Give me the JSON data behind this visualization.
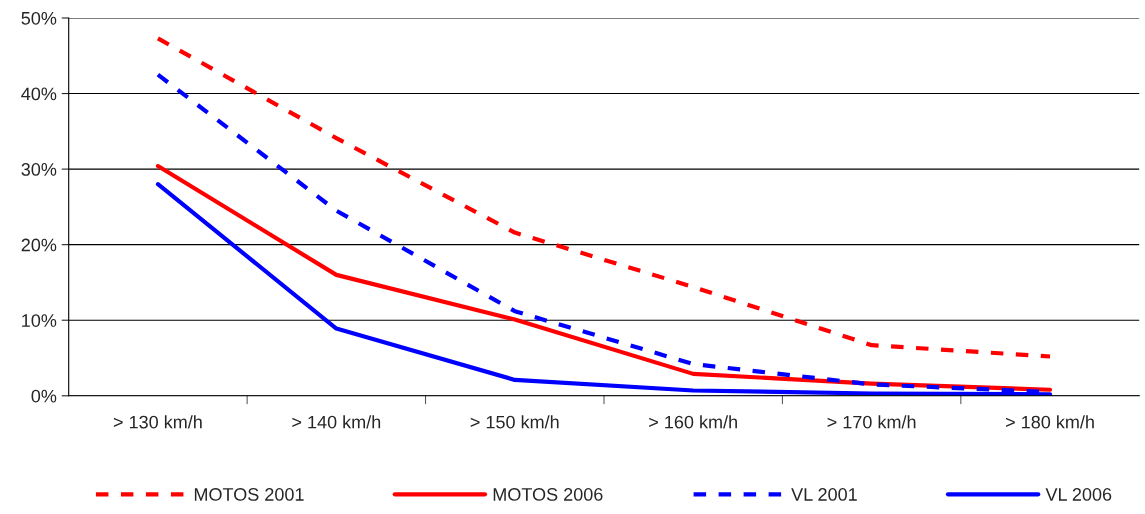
{
  "chart_data": {
    "type": "line",
    "categories": [
      "> 130 km/h",
      "> 140 km/h",
      "> 150 km/h",
      "> 160 km/h",
      "> 170 km/h",
      "> 180 km/h"
    ],
    "series": [
      {
        "name": "MOTOS 2001",
        "color": "#ff0000",
        "line_style": "dashed",
        "values": [
          47.3,
          34.1,
          21.6,
          14.4,
          6.7,
          5.2
        ]
      },
      {
        "name": "MOTOS 2006",
        "color": "#ff0000",
        "line_style": "solid",
        "values": [
          30.4,
          16.0,
          10.1,
          2.9,
          1.6,
          0.8
        ]
      },
      {
        "name": "VL 2001",
        "color": "#0000ff",
        "line_style": "dashed",
        "values": [
          42.5,
          24.5,
          11.2,
          4.2,
          1.5,
          0.5
        ]
      },
      {
        "name": "VL 2006",
        "color": "#0000ff",
        "line_style": "solid",
        "values": [
          28.0,
          8.9,
          2.1,
          0.7,
          0.3,
          0.2
        ]
      }
    ],
    "ylim": [
      0,
      50
    ],
    "yticks": [
      {
        "value": 0,
        "label": "0%"
      },
      {
        "value": 10,
        "label": "10%"
      },
      {
        "value": 20,
        "label": "20%"
      },
      {
        "value": 30,
        "label": "30%"
      },
      {
        "value": 40,
        "label": "40%"
      },
      {
        "value": 50,
        "label": "50%"
      }
    ],
    "grid": "y",
    "legend": "bottom",
    "marker": "none"
  }
}
